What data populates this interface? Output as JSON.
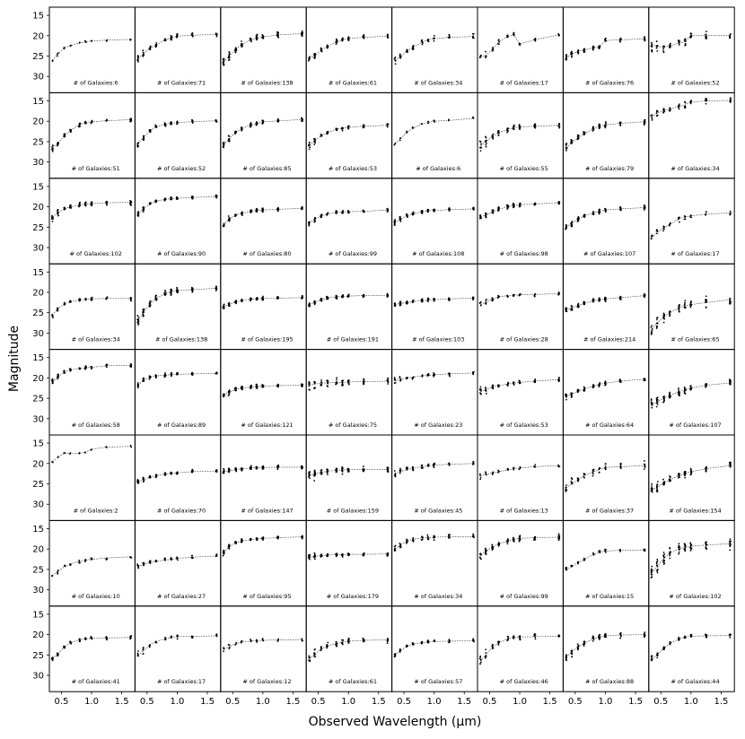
{
  "chart_data": {
    "type": "scatter",
    "rows": 8,
    "cols": 8,
    "xlabel": "Observed Wavelength (μm)",
    "ylabel": "Magnitude",
    "xlim": [
      0.3,
      1.72
    ],
    "ylim": [
      34,
      13
    ],
    "y_inverted": true,
    "xticks": [
      "0.5",
      "1.0",
      "1.5"
    ],
    "xtick_values": [
      0.5,
      1.0,
      1.5
    ],
    "yticks": [
      "15",
      "20",
      "25",
      "30"
    ],
    "ytick_values": [
      15,
      20,
      25,
      30
    ],
    "wavelengths": [
      0.35,
      0.44,
      0.55,
      0.65,
      0.8,
      0.9,
      1.0,
      1.25,
      1.65
    ],
    "label_prefix": "# of Galaxies:",
    "panels": [
      {
        "n": 6,
        "mags": [
          26.0,
          24.5,
          23.0,
          22.4,
          21.8,
          21.5,
          21.3,
          21.1,
          20.9
        ],
        "scatter": 0.3
      },
      {
        "n": 71,
        "mags": [
          25.5,
          24.5,
          23.0,
          22.3,
          21.0,
          20.5,
          20.1,
          19.9,
          19.7
        ],
        "scatter": 0.5
      },
      {
        "n": 138,
        "mags": [
          26.5,
          25.0,
          23.3,
          22.2,
          21.0,
          20.6,
          20.3,
          19.8,
          19.5
        ],
        "scatter": 0.7
      },
      {
        "n": 61,
        "mags": [
          25.5,
          25.0,
          23.5,
          22.7,
          21.5,
          21.0,
          20.7,
          20.4,
          20.1
        ],
        "scatter": 0.5
      },
      {
        "n": 34,
        "mags": [
          26.0,
          25.2,
          23.8,
          22.8,
          21.6,
          21.0,
          20.7,
          20.4,
          20.2
        ],
        "scatter": 0.6
      },
      {
        "n": 17,
        "mags": [
          25.2,
          24.8,
          23.3,
          21.5,
          20.2,
          19.8,
          22.0,
          21.0,
          19.8
        ],
        "scatter": 0.5
      },
      {
        "n": 76,
        "mags": [
          25.5,
          24.5,
          23.8,
          23.5,
          23.0,
          22.8,
          21.2,
          21.0,
          20.8
        ],
        "scatter": 0.5
      },
      {
        "n": 52,
        "mags": [
          22.3,
          22.6,
          22.8,
          22.5,
          21.8,
          21.5,
          19.9,
          19.9,
          19.9
        ],
        "scatter": 1.0
      },
      {
        "n": 51,
        "mags": [
          26.5,
          25.5,
          23.5,
          22.3,
          20.8,
          20.3,
          20.1,
          19.9,
          19.6
        ],
        "scatter": 0.5
      },
      {
        "n": 52,
        "mags": [
          25.5,
          24.0,
          22.4,
          21.3,
          20.7,
          20.5,
          20.3,
          20.1,
          19.9
        ],
        "scatter": 0.5
      },
      {
        "n": 85,
        "mags": [
          25.8,
          24.3,
          22.8,
          21.8,
          20.9,
          20.5,
          20.2,
          19.9,
          19.6
        ],
        "scatter": 0.5
      },
      {
        "n": 53,
        "mags": [
          25.8,
          24.8,
          23.5,
          22.8,
          22.0,
          21.7,
          21.5,
          21.2,
          21.0
        ],
        "scatter": 0.5
      },
      {
        "n": 6,
        "mags": [
          25.5,
          24.3,
          22.7,
          21.7,
          20.7,
          20.3,
          20.0,
          19.8,
          19.3
        ],
        "scatter": 0.3
      },
      {
        "n": 55,
        "mags": [
          26.0,
          25.0,
          23.7,
          22.8,
          22.0,
          21.6,
          21.4,
          21.2,
          21.0
        ],
        "scatter": 0.7
      },
      {
        "n": 79,
        "mags": [
          26.5,
          25.3,
          24.0,
          23.0,
          21.9,
          21.3,
          20.9,
          20.5,
          20.1
        ],
        "scatter": 0.7
      },
      {
        "n": 34,
        "mags": [
          19.0,
          18.0,
          17.4,
          17.0,
          16.3,
          16.0,
          15.3,
          15.0,
          14.9
        ],
        "scatter": 0.8
      },
      {
        "n": 102,
        "mags": [
          22.5,
          21.5,
          20.5,
          20.0,
          19.6,
          19.3,
          19.2,
          19.0,
          18.9
        ],
        "scatter": 0.6
      },
      {
        "n": 90,
        "mags": [
          22.0,
          20.5,
          19.2,
          18.6,
          18.2,
          18.0,
          17.9,
          17.7,
          17.5
        ],
        "scatter": 0.4
      },
      {
        "n": 80,
        "mags": [
          24.5,
          23.0,
          22.0,
          21.6,
          21.1,
          20.9,
          20.8,
          20.6,
          20.4
        ],
        "scatter": 0.4
      },
      {
        "n": 99,
        "mags": [
          24.0,
          23.0,
          22.2,
          21.8,
          21.4,
          21.3,
          21.2,
          21.1,
          20.8
        ],
        "scatter": 0.4
      },
      {
        "n": 108,
        "mags": [
          24.0,
          23.0,
          22.2,
          21.7,
          21.2,
          21.0,
          20.9,
          20.7,
          20.5
        ],
        "scatter": 0.4
      },
      {
        "n": 98,
        "mags": [
          22.5,
          22.0,
          21.2,
          20.6,
          20.0,
          19.7,
          19.5,
          19.3,
          19.0
        ],
        "scatter": 0.5
      },
      {
        "n": 107,
        "mags": [
          25.0,
          24.0,
          23.0,
          22.2,
          21.5,
          21.1,
          20.8,
          20.5,
          20.2
        ],
        "scatter": 0.5
      },
      {
        "n": 17,
        "mags": [
          27.5,
          26.3,
          25.2,
          24.3,
          23.0,
          22.5,
          22.2,
          21.8,
          21.5
        ],
        "scatter": 0.6
      },
      {
        "n": 34,
        "mags": [
          25.5,
          24.0,
          22.8,
          22.3,
          21.9,
          21.7,
          21.6,
          21.5,
          21.5
        ],
        "scatter": 0.5
      },
      {
        "n": 138,
        "mags": [
          27.0,
          25.0,
          22.8,
          21.4,
          20.3,
          19.9,
          19.6,
          19.3,
          19.0
        ],
        "scatter": 0.7
      },
      {
        "n": 195,
        "mags": [
          23.5,
          23.0,
          22.4,
          22.0,
          21.7,
          21.6,
          21.5,
          21.4,
          21.3
        ],
        "scatter": 0.4
      },
      {
        "n": 191,
        "mags": [
          23.0,
          22.4,
          21.8,
          21.4,
          21.1,
          21.0,
          20.9,
          20.8,
          20.7
        ],
        "scatter": 0.4
      },
      {
        "n": 103,
        "mags": [
          23.0,
          22.7,
          22.5,
          22.3,
          22.0,
          21.9,
          21.8,
          21.6,
          21.4
        ],
        "scatter": 0.4
      },
      {
        "n": 28,
        "mags": [
          23.0,
          22.4,
          21.6,
          21.1,
          20.8,
          20.7,
          20.6,
          20.5,
          20.3
        ],
        "scatter": 0.4
      },
      {
        "n": 214,
        "mags": [
          24.3,
          23.8,
          23.2,
          22.7,
          22.1,
          21.8,
          21.6,
          21.3,
          20.8
        ],
        "scatter": 0.5
      },
      {
        "n": 65,
        "mags": [
          29.0,
          27.5,
          26.0,
          25.0,
          23.8,
          23.3,
          23.0,
          22.5,
          21.8
        ],
        "scatter": 1.2
      },
      {
        "n": 58,
        "mags": [
          21.0,
          19.8,
          18.5,
          18.0,
          17.7,
          17.5,
          17.4,
          17.0,
          16.9
        ],
        "scatter": 0.4
      },
      {
        "n": 89,
        "mags": [
          21.8,
          20.5,
          19.8,
          19.5,
          19.3,
          19.2,
          19.1,
          19.0,
          18.9
        ],
        "scatter": 0.4
      },
      {
        "n": 121,
        "mags": [
          24.2,
          23.5,
          22.8,
          22.5,
          22.2,
          22.1,
          22.0,
          21.9,
          21.8
        ],
        "scatter": 0.4
      },
      {
        "n": 75,
        "mags": [
          21.8,
          21.5,
          21.3,
          21.2,
          21.1,
          21.1,
          21.0,
          20.9,
          20.8
        ],
        "scatter": 0.8
      },
      {
        "n": 23,
        "mags": [
          20.8,
          20.3,
          20.0,
          19.8,
          19.5,
          19.4,
          19.2,
          19.0,
          18.8
        ],
        "scatter": 0.5
      },
      {
        "n": 53,
        "mags": [
          23.3,
          22.8,
          22.2,
          21.9,
          21.5,
          21.3,
          21.1,
          20.8,
          20.4
        ],
        "scatter": 0.5
      },
      {
        "n": 64,
        "mags": [
          24.5,
          24.0,
          23.2,
          22.7,
          22.0,
          21.6,
          21.3,
          20.8,
          20.3
        ],
        "scatter": 0.5
      },
      {
        "n": 107,
        "mags": [
          26.5,
          25.8,
          25.0,
          24.3,
          23.4,
          22.9,
          22.5,
          21.8,
          21.2
        ],
        "scatter": 0.8
      },
      {
        "n": 2,
        "mags": [
          19.5,
          18.5,
          17.5,
          17.5,
          17.5,
          17.2,
          16.5,
          16.0,
          15.8
        ],
        "scatter": 0.3
      },
      {
        "n": 70,
        "mags": [
          24.5,
          24.0,
          23.4,
          23.0,
          22.6,
          22.4,
          22.3,
          22.0,
          21.9
        ],
        "scatter": 0.4
      },
      {
        "n": 147,
        "mags": [
          22.0,
          21.8,
          21.5,
          21.3,
          21.1,
          21.0,
          21.0,
          20.9,
          20.9
        ],
        "scatter": 0.5
      },
      {
        "n": 159,
        "mags": [
          23.0,
          22.6,
          22.2,
          21.9,
          21.7,
          21.6,
          21.5,
          21.5,
          21.5
        ],
        "scatter": 0.7
      },
      {
        "n": 45,
        "mags": [
          22.5,
          22.0,
          21.5,
          21.2,
          20.8,
          20.6,
          20.4,
          20.2,
          20.0
        ],
        "scatter": 0.5
      },
      {
        "n": 13,
        "mags": [
          23.0,
          22.7,
          22.3,
          22.0,
          21.6,
          21.3,
          21.1,
          20.8,
          20.5
        ],
        "scatter": 0.5
      },
      {
        "n": 37,
        "mags": [
          26.0,
          25.0,
          24.0,
          23.0,
          22.0,
          21.5,
          21.0,
          20.8,
          20.5
        ],
        "scatter": 1.0
      },
      {
        "n": 154,
        "mags": [
          26.5,
          25.8,
          24.8,
          24.0,
          23.0,
          22.5,
          22.0,
          21.3,
          20.5
        ],
        "scatter": 0.8
      },
      {
        "n": 10,
        "mags": [
          26.5,
          25.5,
          24.3,
          23.7,
          23.0,
          22.7,
          22.5,
          22.2,
          21.9
        ],
        "scatter": 0.4
      },
      {
        "n": 27,
        "mags": [
          24.3,
          23.8,
          23.3,
          23.0,
          22.7,
          22.5,
          22.3,
          22.0,
          21.7
        ],
        "scatter": 0.4
      },
      {
        "n": 95,
        "mags": [
          20.8,
          19.5,
          18.5,
          18.0,
          17.7,
          17.5,
          17.4,
          17.2,
          17.0
        ],
        "scatter": 0.4
      },
      {
        "n": 179,
        "mags": [
          22.0,
          21.8,
          21.6,
          21.5,
          21.4,
          21.4,
          21.3,
          21.3,
          21.2
        ],
        "scatter": 0.4
      },
      {
        "n": 34,
        "mags": [
          20.0,
          19.0,
          18.0,
          17.6,
          17.3,
          17.2,
          17.1,
          17.0,
          17.0
        ],
        "scatter": 0.6
      },
      {
        "n": 99,
        "mags": [
          21.5,
          20.5,
          19.5,
          18.8,
          18.0,
          17.6,
          17.4,
          17.2,
          17.1
        ],
        "scatter": 0.6
      },
      {
        "n": 15,
        "mags": [
          25.0,
          24.3,
          23.3,
          22.5,
          21.3,
          20.8,
          20.5,
          20.3,
          20.2
        ],
        "scatter": 0.4
      },
      {
        "n": 102,
        "mags": [
          25.8,
          24.3,
          22.3,
          21.0,
          20.0,
          19.6,
          19.3,
          19.0,
          18.7
        ],
        "scatter": 1.3
      },
      {
        "n": 41,
        "mags": [
          25.8,
          24.8,
          23.0,
          22.0,
          21.3,
          21.0,
          20.9,
          20.8,
          20.7
        ],
        "scatter": 0.4
      },
      {
        "n": 17,
        "mags": [
          25.0,
          24.0,
          22.5,
          21.7,
          21.0,
          20.7,
          20.5,
          20.4,
          20.3
        ],
        "scatter": 0.5
      },
      {
        "n": 12,
        "mags": [
          23.5,
          23.0,
          22.2,
          21.9,
          21.6,
          21.5,
          21.4,
          21.3,
          21.2
        ],
        "scatter": 0.4
      },
      {
        "n": 61,
        "mags": [
          26.0,
          24.8,
          23.5,
          22.7,
          22.2,
          21.8,
          21.6,
          21.4,
          21.3
        ],
        "scatter": 0.8
      },
      {
        "n": 57,
        "mags": [
          25.0,
          24.0,
          22.8,
          22.3,
          22.0,
          21.8,
          21.7,
          21.6,
          21.5
        ],
        "scatter": 0.4
      },
      {
        "n": 46,
        "mags": [
          26.5,
          25.0,
          23.0,
          22.0,
          21.0,
          20.7,
          20.6,
          20.5,
          20.4
        ],
        "scatter": 0.6
      },
      {
        "n": 88,
        "mags": [
          25.5,
          24.3,
          23.0,
          22.2,
          21.0,
          20.6,
          20.3,
          20.1,
          20.0
        ],
        "scatter": 0.6
      },
      {
        "n": 44,
        "mags": [
          26.0,
          25.0,
          23.3,
          22.3,
          21.0,
          20.6,
          20.4,
          20.3,
          20.2
        ],
        "scatter": 0.5
      }
    ]
  }
}
